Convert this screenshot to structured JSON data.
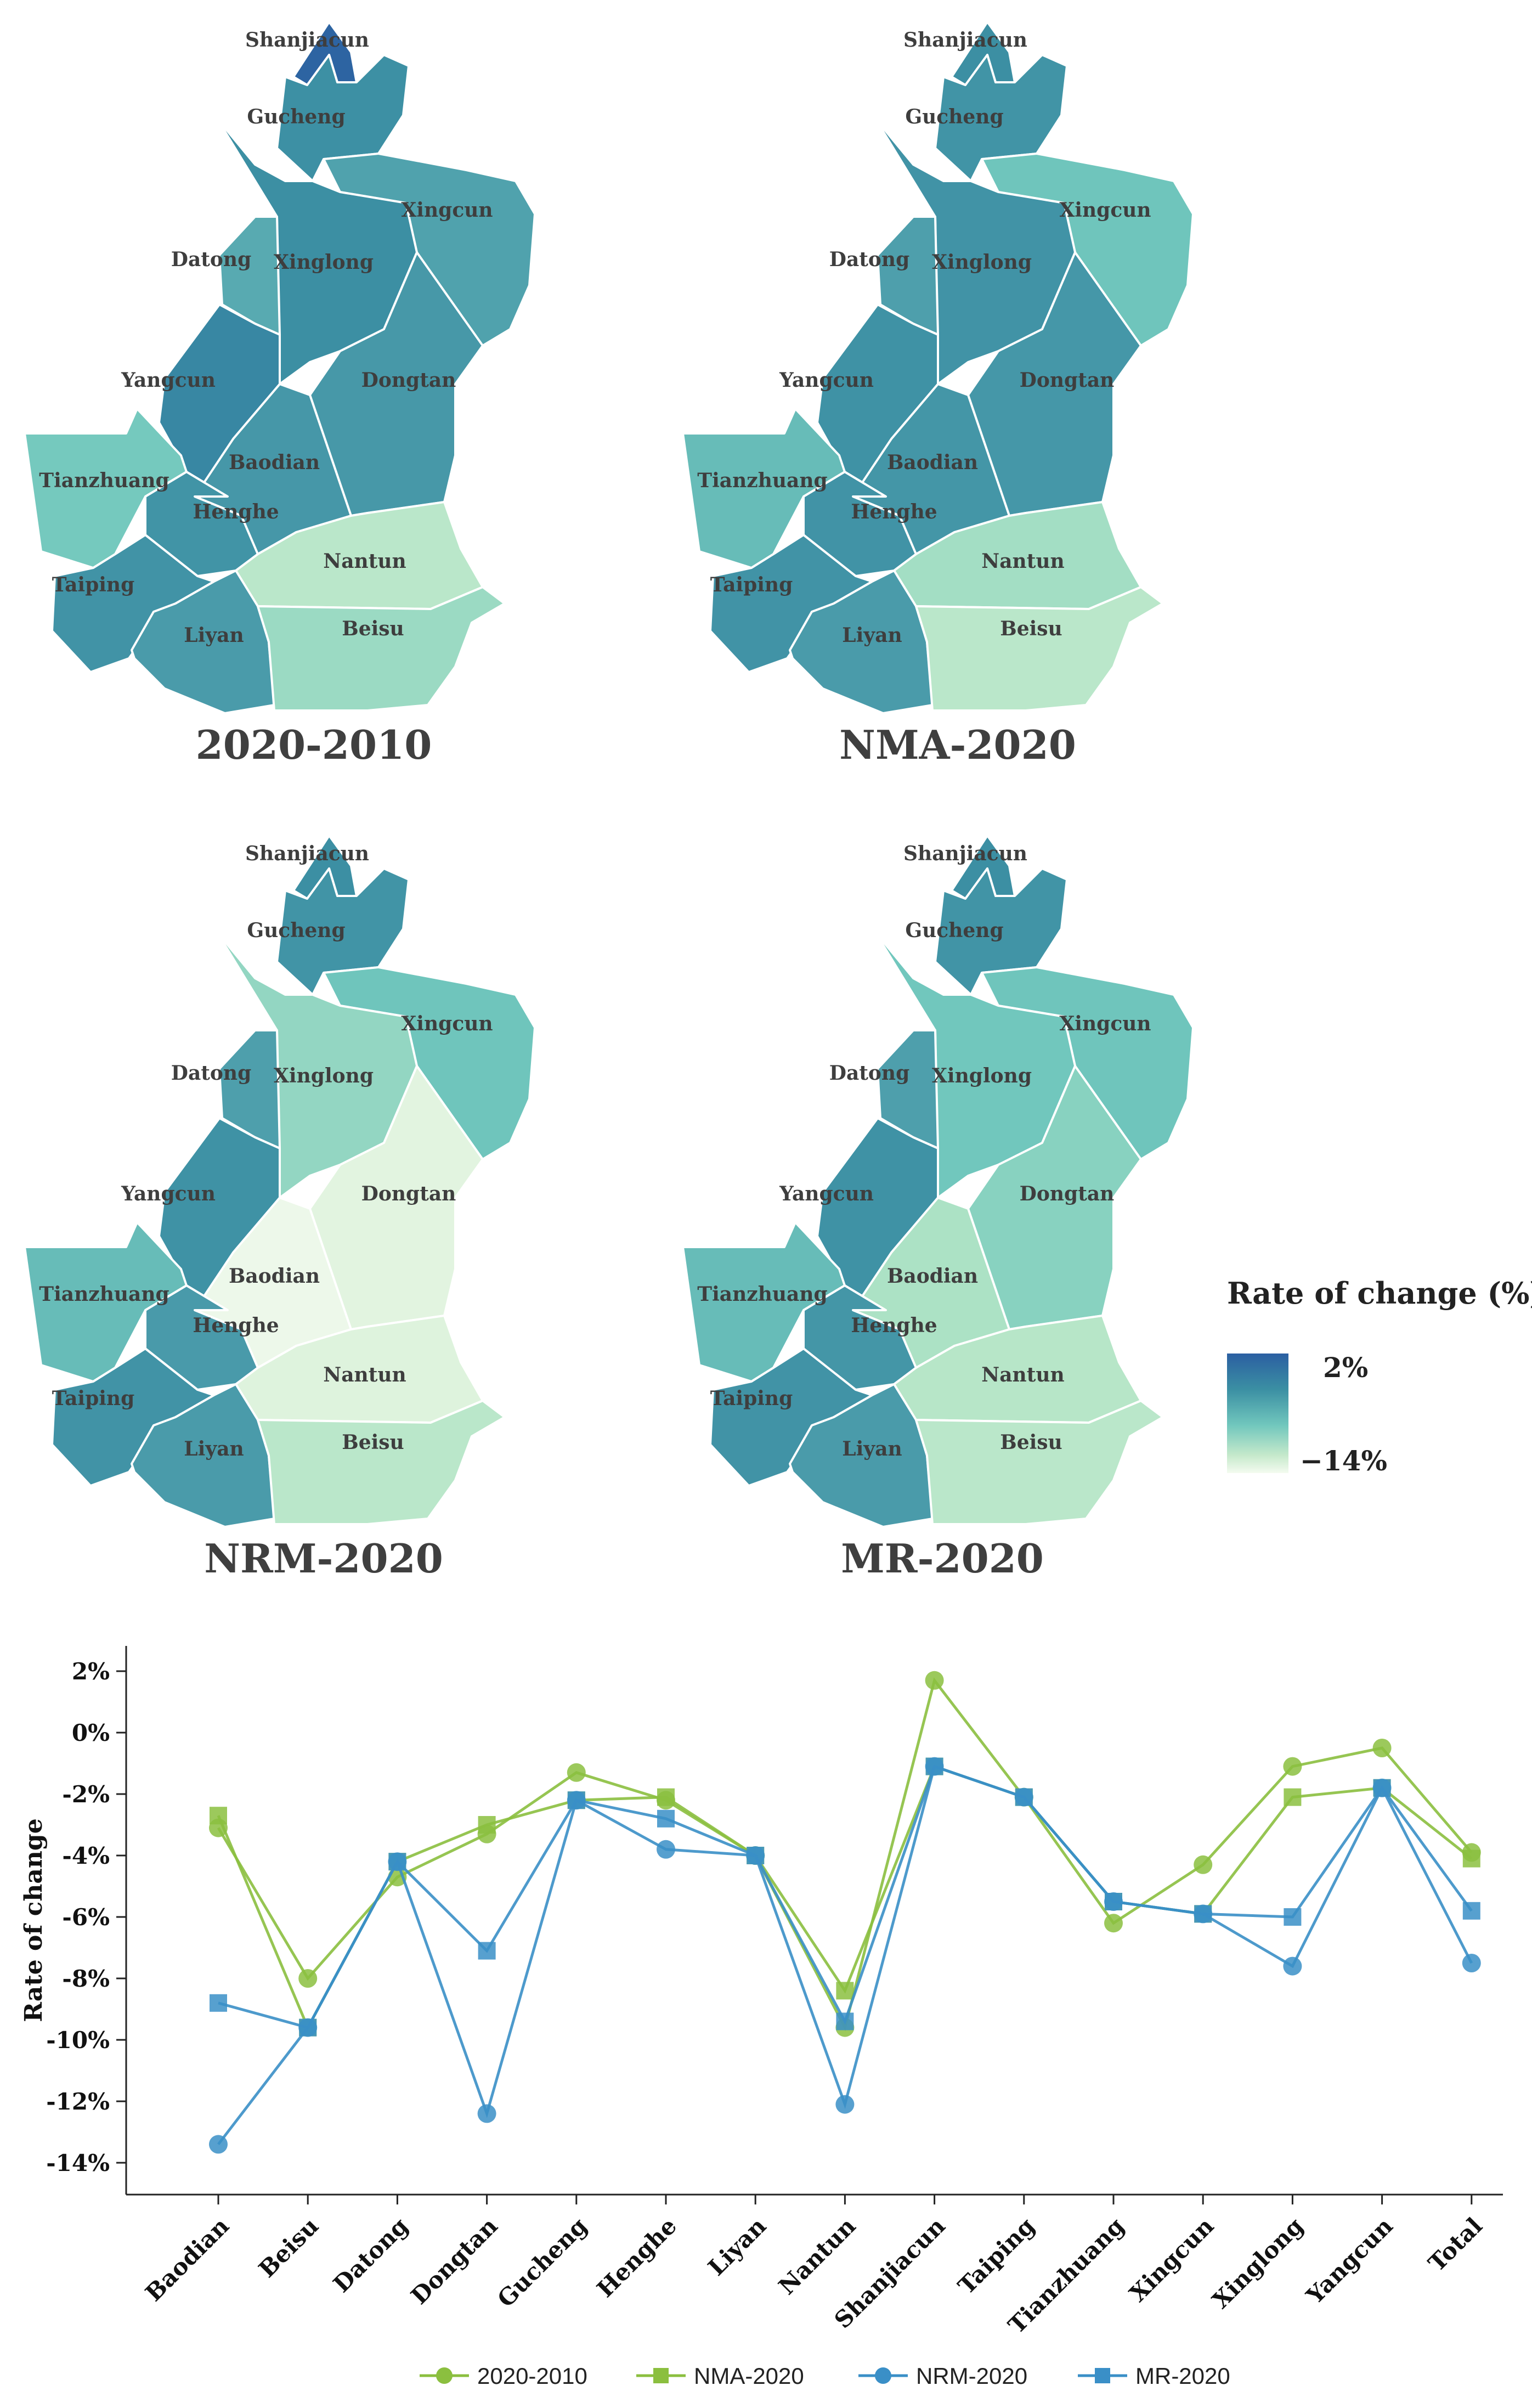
{
  "maps": [
    {
      "title": "2020-2010",
      "values": {
        "Shanjiacun": 1.7,
        "Gucheng": -1.3,
        "Xingcun": -4.3,
        "Datong": -4.7,
        "Xinglong": -1.1,
        "Yangcun": -0.5,
        "Dongtan": -3.3,
        "Tianzhuang": -6.2,
        "Baodian": -3.1,
        "Henghe": -2.2,
        "Nantun": -9.6,
        "Taiping": -2.1,
        "Liyan": -4.0,
        "Beisu": -8.0
      }
    },
    {
      "title": "NMA-2020",
      "values": {
        "Shanjiacun": -1.1,
        "Gucheng": -2.2,
        "Xingcun": -5.9,
        "Datong": -4.2,
        "Xinglong": -2.1,
        "Yangcun": -1.8,
        "Dongtan": -3.0,
        "Tianzhuang": -5.5,
        "Baodian": -2.7,
        "Henghe": -2.1,
        "Nantun": -8.4,
        "Taiping": -2.1,
        "Liyan": -4.0,
        "Beisu": -9.6
      }
    },
    {
      "title": "NRM-2020",
      "values": {
        "Shanjiacun": -1.1,
        "Gucheng": -2.2,
        "Xingcun": -5.9,
        "Datong": -4.2,
        "Xinglong": -7.6,
        "Yangcun": -1.8,
        "Dongtan": -12.4,
        "Tianzhuang": -5.5,
        "Baodian": -13.4,
        "Henghe": -3.8,
        "Nantun": -12.1,
        "Taiping": -2.1,
        "Liyan": -4.0,
        "Beisu": -9.6
      }
    },
    {
      "title": "MR-2020",
      "values": {
        "Shanjiacun": -1.1,
        "Gucheng": -2.2,
        "Xingcun": -5.9,
        "Datong": -4.2,
        "Xinglong": -6.0,
        "Yangcun": -1.8,
        "Dongtan": -7.1,
        "Tianzhuang": -5.5,
        "Baodian": -8.8,
        "Henghe": -2.8,
        "Nantun": -9.4,
        "Taiping": -2.1,
        "Liyan": -4.0,
        "Beisu": -9.6
      }
    }
  ],
  "legend": {
    "title": "Rate of change (%)",
    "max_label": "2%",
    "min_label": "−14%",
    "max_value": 2,
    "min_value": -14
  },
  "chart_data": {
    "type": "line",
    "title": "",
    "xlabel": "",
    "ylabel": "Rate of change",
    "ylim": [
      -15,
      3
    ],
    "yticks": [
      2,
      0,
      -2,
      -4,
      -6,
      -8,
      -10,
      -12,
      -14
    ],
    "ytick_labels": [
      "2%",
      "0%",
      "-2%",
      "-4%",
      "-6%",
      "-8%",
      "-10%",
      "-12%",
      "-14%"
    ],
    "categories": [
      "Baodian",
      "Beisu",
      "Datong",
      "Dongtan",
      "Gucheng",
      "Henghe",
      "Liyan",
      "Nantun",
      "Shanjiacun",
      "Taiping",
      "Tianzhuang",
      "Xingcun",
      "Xinglong",
      "Yangcun",
      "Total"
    ],
    "series": [
      {
        "name": "2020-2010",
        "marker": "circle",
        "color": "#8bbf3f",
        "values": [
          -3.1,
          -8.0,
          -4.7,
          -3.3,
          -1.3,
          -2.2,
          -4.0,
          -9.6,
          1.7,
          -2.1,
          -6.2,
          -4.3,
          -1.1,
          -0.5,
          -3.9
        ]
      },
      {
        "name": "NMA-2020",
        "marker": "square",
        "color": "#8bbf3f",
        "values": [
          -2.7,
          -9.6,
          -4.2,
          -3.0,
          -2.2,
          -2.1,
          -4.0,
          -8.4,
          -1.1,
          -2.1,
          -5.5,
          -5.9,
          -2.1,
          -1.8,
          -4.1
        ]
      },
      {
        "name": "NRM-2020",
        "marker": "circle",
        "color": "#3a8fc7",
        "values": [
          -13.4,
          -9.6,
          -4.2,
          -12.4,
          -2.2,
          -3.8,
          -4.0,
          -12.1,
          -1.1,
          -2.1,
          -5.5,
          -5.9,
          -7.6,
          -1.8,
          -7.5
        ]
      },
      {
        "name": "MR-2020",
        "marker": "square",
        "color": "#3a8fc7",
        "values": [
          -8.8,
          -9.6,
          -4.2,
          -7.1,
          -2.2,
          -2.8,
          -4.0,
          -9.4,
          -1.1,
          -2.1,
          -5.5,
          -5.9,
          -6.0,
          -1.8,
          -5.8
        ]
      }
    ],
    "legend_position": "bottom"
  }
}
